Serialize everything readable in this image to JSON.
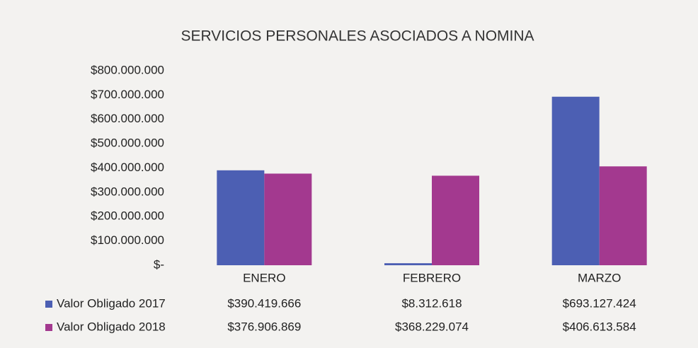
{
  "chart_data": {
    "type": "bar",
    "title": "SERVICIOS PERSONALES ASOCIADOS A NOMINA",
    "categories": [
      "ENERO",
      "FEBRERO",
      "MARZO"
    ],
    "series": [
      {
        "name": "Valor Obligado 2017",
        "color": "#4c5fb3",
        "values": [
          390419666,
          8312618,
          693127424
        ],
        "value_labels": [
          "$390.419.666",
          "$8.312.618",
          "$693.127.424"
        ]
      },
      {
        "name": "Valor Obligado 2018",
        "color": "#a3398f",
        "values": [
          376906869,
          368229074,
          406613584
        ],
        "value_labels": [
          "$376.906.869",
          "$368.229.074",
          "$406.613.584"
        ]
      }
    ],
    "ylim": [
      0,
      800000000
    ],
    "yticks": [
      {
        "value": 0,
        "label": "$-"
      },
      {
        "value": 100000000,
        "label": "$100.000.000"
      },
      {
        "value": 200000000,
        "label": "$200.000.000"
      },
      {
        "value": 300000000,
        "label": "$300.000.000"
      },
      {
        "value": 400000000,
        "label": "$400.000.000"
      },
      {
        "value": 500000000,
        "label": "$500.000.000"
      },
      {
        "value": 600000000,
        "label": "$600.000.000"
      },
      {
        "value": 700000000,
        "label": "$700.000.000"
      },
      {
        "value": 800000000,
        "label": "$800.000.000"
      }
    ],
    "grid": false,
    "legend": "bottom"
  }
}
